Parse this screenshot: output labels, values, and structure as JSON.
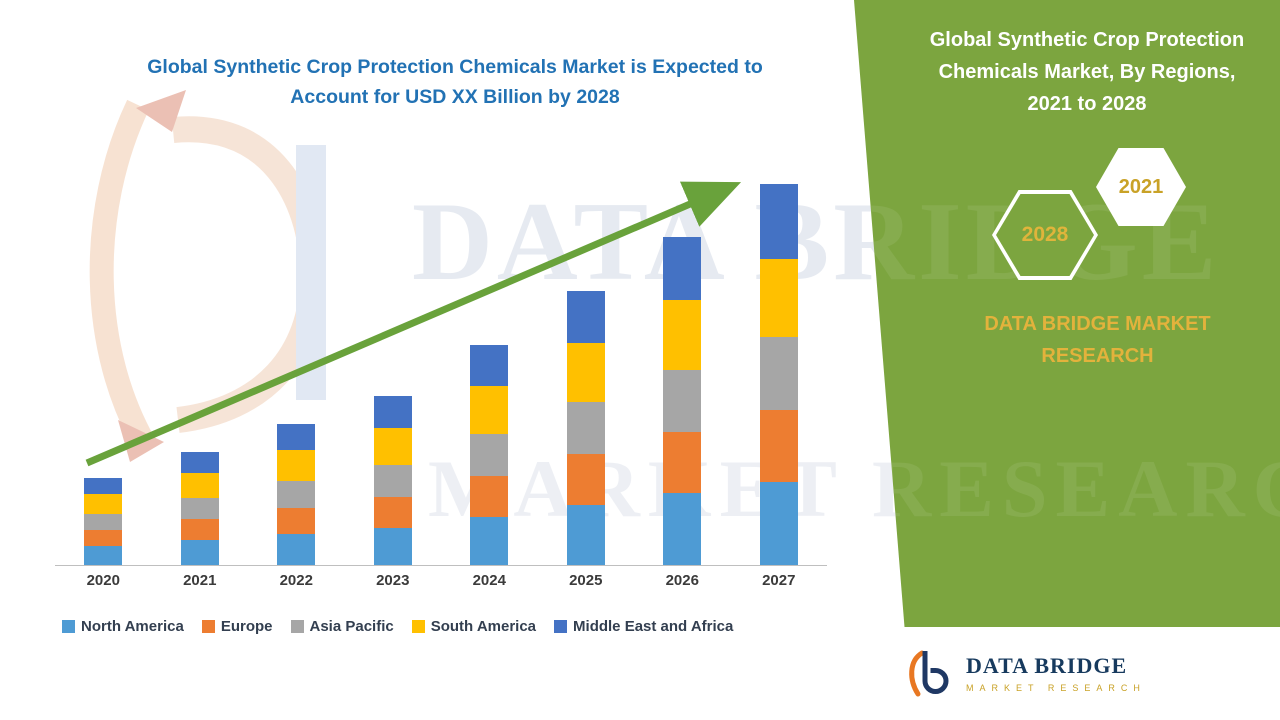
{
  "main": {
    "title_lines": [
      "Global Synthetic Crop Protection Chemicals Market is Expected to",
      "Account for USD XX Billion by 2028"
    ],
    "title_color": "#2272B4"
  },
  "chart_data": {
    "type": "bar",
    "stacked": true,
    "title": "Global Synthetic Crop Protection Chemicals Market is Expected to Account for USD XX Billion by 2028",
    "xlabel": "",
    "ylabel": "",
    "y_axis_visible": false,
    "legend_position": "bottom",
    "grid": false,
    "trend_arrow": true,
    "trend_arrow_color": "#69A23B",
    "categories": [
      "2020",
      "2021",
      "2022",
      "2023",
      "2024",
      "2025",
      "2026",
      "2027"
    ],
    "series": [
      {
        "name": "North America",
        "color": "#4E9BD4",
        "values": [
          19,
          25,
          31,
          37,
          48,
          60,
          72,
          83
        ]
      },
      {
        "name": "Europe",
        "color": "#ED7D31",
        "values": [
          16,
          21,
          26,
          31,
          41,
          51,
          61,
          72
        ]
      },
      {
        "name": "Asia Pacific",
        "color": "#A6A6A6",
        "values": [
          16,
          21,
          27,
          32,
          42,
          52,
          62,
          73
        ]
      },
      {
        "name": "South America",
        "color": "#FFC000",
        "values": [
          20,
          25,
          31,
          37,
          48,
          59,
          70,
          78
        ]
      },
      {
        "name": "Middle East and Africa",
        "color": "#4472C4",
        "values": [
          16,
          21,
          26,
          32,
          41,
          52,
          63,
          75
        ]
      }
    ]
  },
  "watermark": {
    "line1": "DATA BRIDGE",
    "line2": "MARKET RESEARCH"
  },
  "right_panel": {
    "background": "#7CA53F",
    "title_lines": [
      "Global Synthetic Crop Protection",
      "Chemicals Market, By Regions,",
      "2021 to 2028"
    ],
    "hexagons": [
      {
        "label": "2028"
      },
      {
        "label": "2021"
      }
    ],
    "brand_lines": [
      "DATA BRIDGE MARKET",
      "RESEARCH"
    ],
    "accent_gold": "#E3B23C"
  },
  "footer_logo": {
    "name": "DATA BRIDGE",
    "subtitle": "MARKET RESEARCH"
  }
}
